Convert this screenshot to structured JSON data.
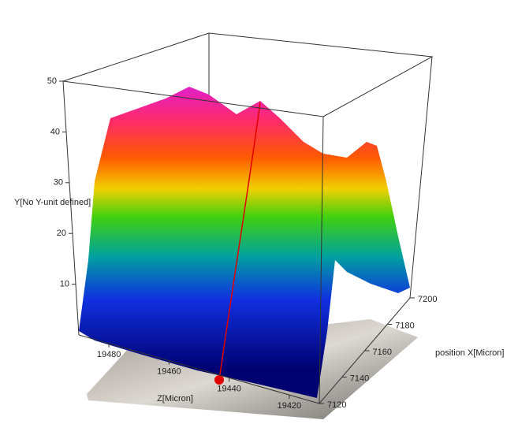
{
  "chart_data": {
    "type": "surface3d",
    "y_label": "Y[No Y-unit defined]",
    "x_label": "Z[Micron]",
    "z_label": "position X[Micron]",
    "xlim": [
      19490,
      19410
    ],
    "xticks": [
      19480,
      19460,
      19440,
      19420
    ],
    "ylim": [
      0,
      50
    ],
    "yticks": [
      10,
      20,
      30,
      40,
      50
    ],
    "zlim": [
      7120,
      7200
    ],
    "zticks": [
      7120,
      7140,
      7160,
      7180,
      7200
    ]
  }
}
